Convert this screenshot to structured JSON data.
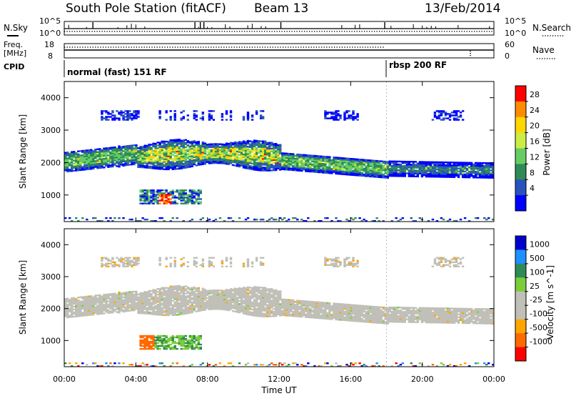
{
  "header": {
    "station": "South Pole Station (fitACF)",
    "beam": "Beam 13",
    "date": "13/Feb/2014"
  },
  "top_panels": {
    "nsky_label": "N.Sky",
    "nsky_ticks": [
      "10^5",
      "10^0"
    ],
    "nsearch_label": "N.Search",
    "nsearch_ticks": [
      "10^5",
      "10^0"
    ],
    "freq_label_1": "Freq.",
    "freq_label_2": "[MHz]",
    "freq_ticks": [
      "18",
      "8"
    ],
    "nave_label": "Nave",
    "nave_ticks": [
      "60",
      "0"
    ],
    "cpid_label": "CPID",
    "cpid_segments": [
      {
        "label": "normal (fast) 151 RF",
        "start_hour": 0
      },
      {
        "label": "rbsp 200 RF",
        "start_hour": 18
      }
    ]
  },
  "chart_data": [
    {
      "type": "heatmap",
      "name": "power",
      "ylabel": "Slant Range [km]",
      "xlabel": "Time UT",
      "xlim": [
        0,
        24
      ],
      "ylim": [
        180,
        4500
      ],
      "x_tick_labels": [
        "00:00",
        "04:00",
        "08:00",
        "12:00",
        "16:00",
        "20:00",
        "00:00"
      ],
      "y_ticks": [
        1000,
        2000,
        3000,
        4000
      ],
      "colorbar_label": "Power [dB]",
      "colorbar_ticks": [
        "28",
        "24",
        "20",
        "16",
        "12",
        "8",
        "4"
      ],
      "colorscale": [
        "#0000ff",
        "#2a52be",
        "#2e8b57",
        "#66cd66",
        "#ccee44",
        "#ffd700",
        "#ff8c00",
        "#ff0000"
      ]
    },
    {
      "type": "heatmap",
      "name": "velocity",
      "ylabel": "Slant Range [km]",
      "xlabel": "Time UT",
      "xlim": [
        0,
        24
      ],
      "ylim": [
        180,
        4500
      ],
      "x_tick_labels": [
        "00:00",
        "04:00",
        "08:00",
        "12:00",
        "16:00",
        "20:00",
        "00:00"
      ],
      "y_ticks": [
        1000,
        2000,
        3000,
        4000
      ],
      "colorbar_label": "Velocity [m s^-1]",
      "colorbar_ticks": [
        "1000",
        "500",
        "100",
        "25",
        "-25",
        "-100",
        "-500",
        "-1000"
      ],
      "colorscale": [
        "#0000cd",
        "#1e90ff",
        "#2e8b57",
        "#7ccd3a",
        "#c0c0b8",
        "#ffa500",
        "#ff6a00",
        "#ff0000"
      ]
    }
  ]
}
